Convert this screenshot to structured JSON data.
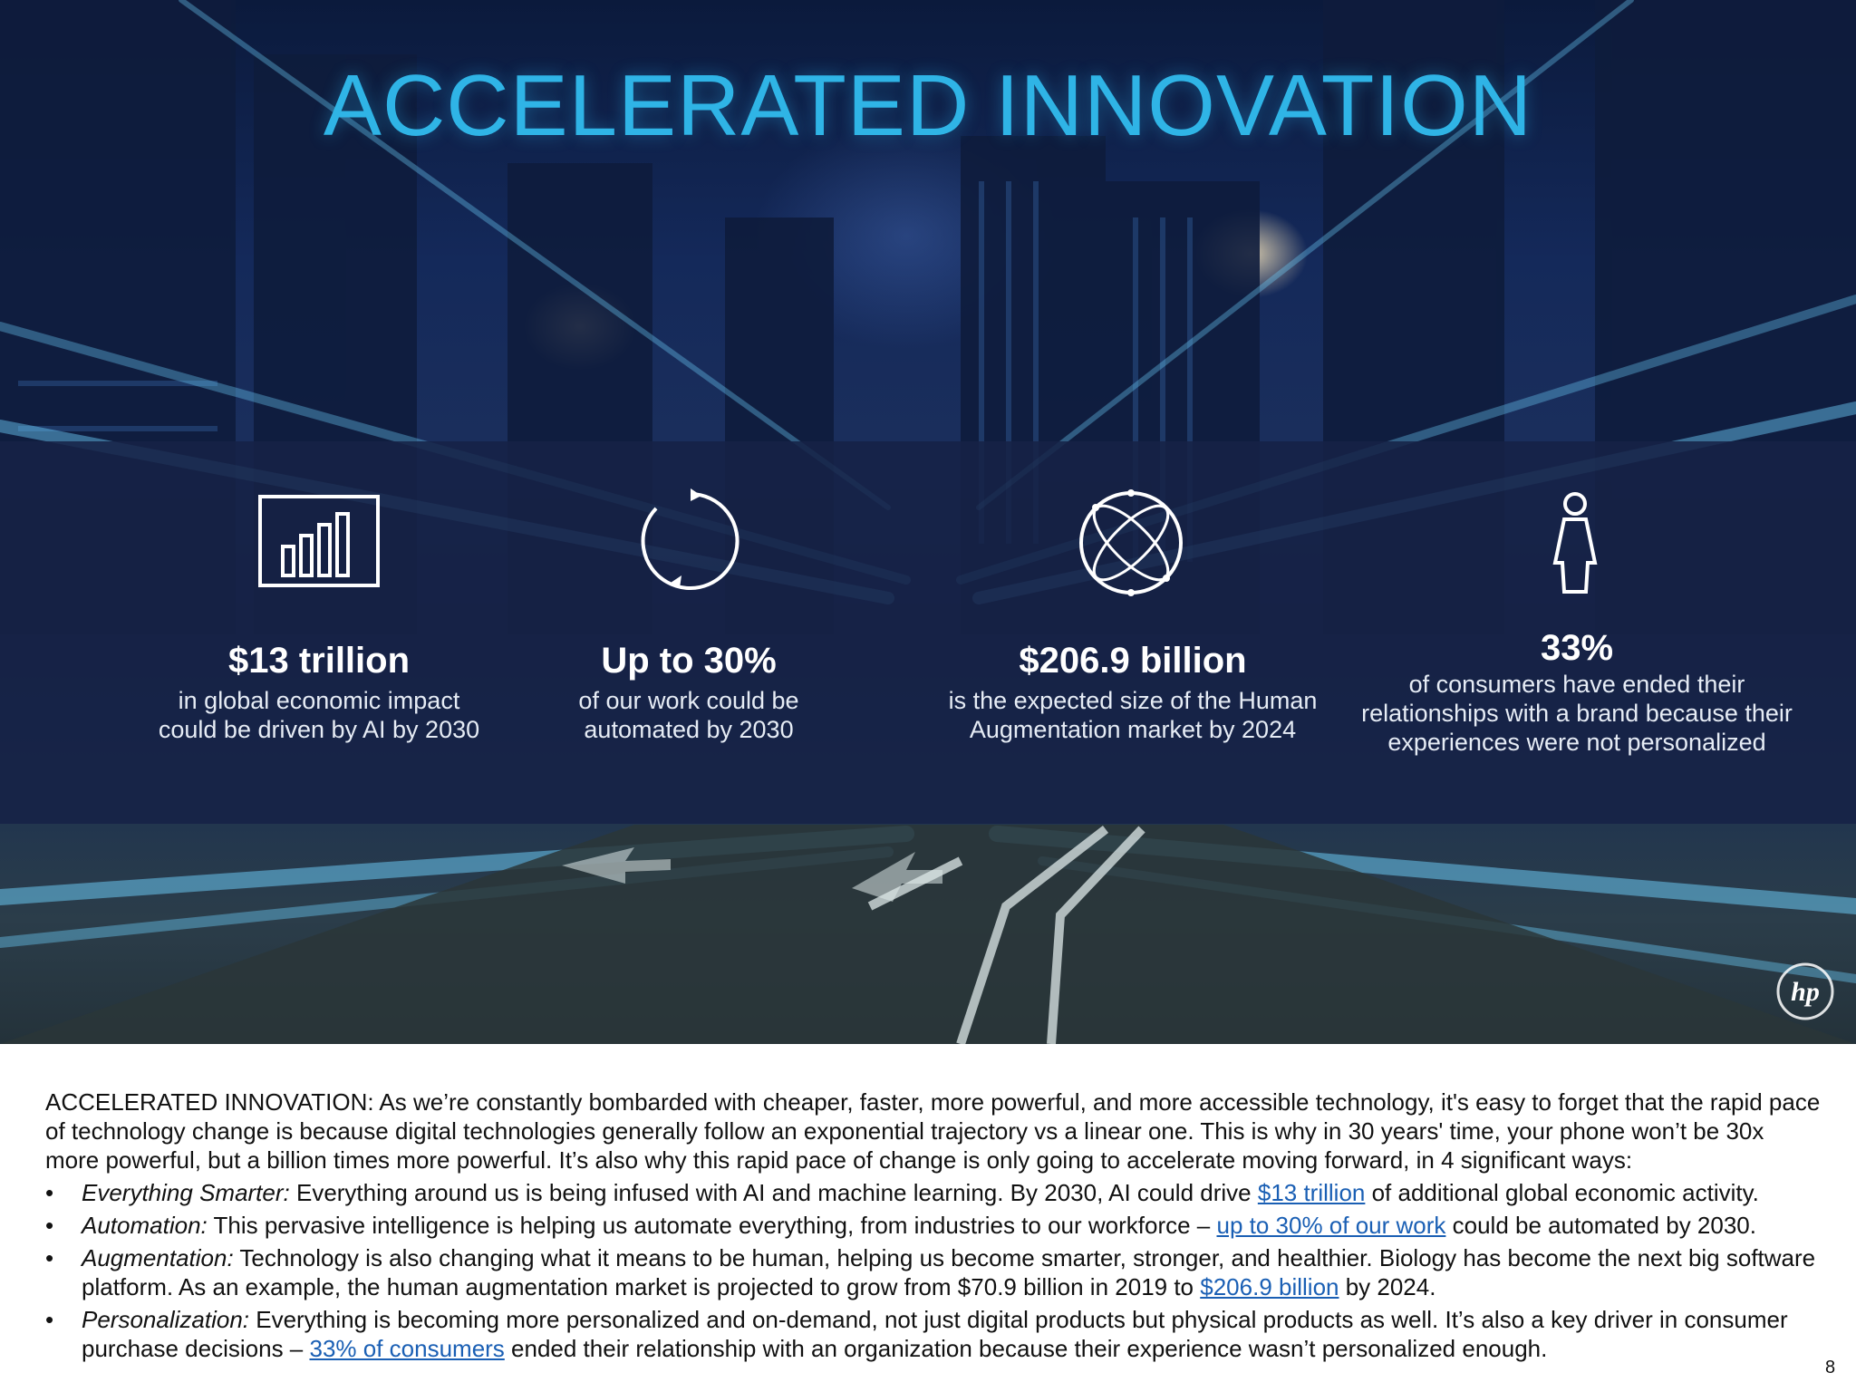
{
  "slide": {
    "title": "ACCELERATED INNOVATION",
    "accent_color": "#2fb4e6",
    "stats": [
      {
        "icon": "bar-chart-icon",
        "value": "$13 trillion",
        "lines": [
          "in global economic impact",
          "could be driven by AI by 2030"
        ]
      },
      {
        "icon": "refresh-cycle-icon",
        "value": "Up to 30%",
        "lines": [
          "of our work could be",
          "automated by 2030"
        ]
      },
      {
        "icon": "globe-network-icon",
        "value": "$206.9 billion",
        "lines": [
          "is the expected size of the Human",
          "Augmentation market by 2024"
        ]
      },
      {
        "icon": "person-icon",
        "value": "33%",
        "lines": [
          "of consumers have ended their",
          "relationships with a brand because their",
          "experiences were not personalized"
        ]
      }
    ],
    "logo": "hp-logo"
  },
  "notes": {
    "intro": "ACCELERATED INNOVATION: As we’re constantly bombarded with cheaper, faster, more powerful, and more accessible technology, it's easy to forget that the rapid pace of technology change is because digital technologies generally follow an exponential trajectory vs a linear one. This is why in 30 years' time, your phone won’t be 30x more powerful, but a billion times more powerful. It’s also why this rapid pace of change is only going to accelerate moving forward, in 4 significant ways:",
    "bullet_symbol": "•",
    "bullets": [
      {
        "lead": "Everything Smarter:",
        "before": " Everything around us is being infused with AI and machine learning. By 2030, AI could drive ",
        "link": "$13 trillion",
        "after": " of additional global economic activity."
      },
      {
        "lead": "Automation:",
        "before": " This pervasive intelligence is helping us automate everything, from industries to our workforce – ",
        "link": "up to 30% of our work",
        "after": " could be automated by 2030."
      },
      {
        "lead": "Augmentation:",
        "before": " Technology is also changing what it means to be human, helping us become smarter, stronger, and healthier. Biology has become the next big software platform. As an example, the human augmentation market is projected to grow from $70.9 billion in 2019 to ",
        "link": "$206.9 billion",
        "after": " by 2024."
      },
      {
        "lead": "Personalization:",
        "before": " Everything is becoming more personalized and on-demand, not just digital products but physical products as well. It’s also a key driver in consumer purchase decisions – ",
        "link": "33% of consumers",
        "after": " ended their relationship with an organization because their experience wasn’t personalized enough."
      }
    ],
    "link_color": "#1a5fb4"
  },
  "page_number": "8"
}
